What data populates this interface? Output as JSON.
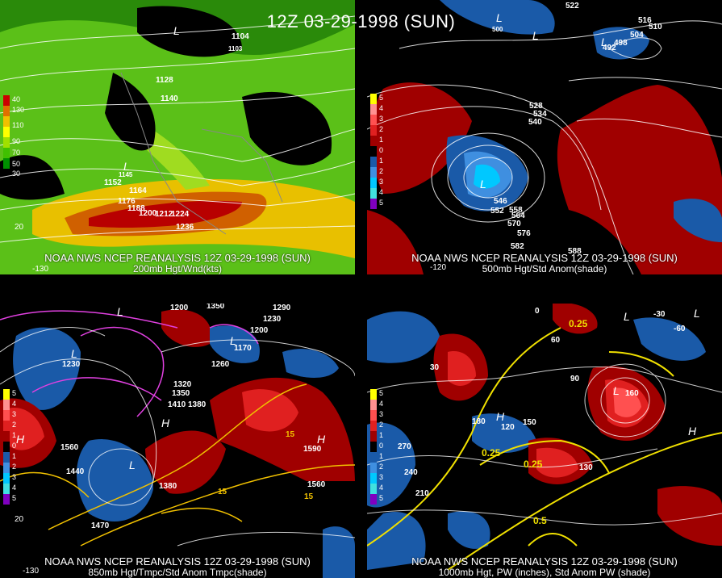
{
  "main_title": "12Z 03-29-1998 (SUN)",
  "panels": [
    {
      "id": "p200",
      "line1": "NOAA NWS NCEP REANALYSIS 12Z 03-29-1998 (SUN)",
      "line2": "200mb Hgt/Wnd(kts)",
      "scale": [
        "40",
        "130",
        "110",
        "90",
        "70",
        "50",
        "30"
      ],
      "scale_colors": [
        "#cc0000",
        "#e07000",
        "#f0c000",
        "#ffff00",
        "#a0e000",
        "#40c000",
        "#009000"
      ],
      "contour_labels": [
        "1104",
        "1103",
        "1128",
        "1140",
        "1152",
        "1164",
        "1176",
        "1188",
        "1200",
        "1212",
        "1224",
        "1236",
        "1145"
      ],
      "lows": [
        "L",
        "L"
      ],
      "edge_labels": [
        "20",
        "-130"
      ]
    },
    {
      "id": "p500",
      "line1": "NOAA NWS NCEP REANALYSIS 12Z 03-29-1998 (SUN)",
      "line2": "500mb Hgt/Std Anom(shade)",
      "scale": [
        "5",
        "4",
        "3",
        "2",
        "1",
        "0",
        "1",
        "2",
        "3",
        "4",
        "5"
      ],
      "scale_colors": [
        "#ffff00",
        "#ff9090",
        "#ff5050",
        "#e02020",
        "#a00000",
        "#000000",
        "#1a5aa8",
        "#3f8fe0",
        "#00c8ff",
        "#40e0e0",
        "#8000c0"
      ],
      "contour_labels": [
        "522",
        "516",
        "510",
        "504",
        "498",
        "492",
        "500",
        "528",
        "534",
        "540",
        "546",
        "552",
        "558",
        "564",
        "570",
        "576",
        "582",
        "588"
      ],
      "lows": [
        "L",
        "L",
        "L",
        "L"
      ],
      "edge_labels": [
        "-120"
      ]
    },
    {
      "id": "p850",
      "line1": "NOAA NWS NCEP REANALYSIS 12Z 03-29-1998 (SUN)",
      "line2": "850mb Hgt/Tmpc/Std Anom Tmpc(shade)",
      "scale": [
        "5",
        "4",
        "3",
        "2",
        "1",
        "0",
        "1",
        "2",
        "3",
        "4",
        "5"
      ],
      "scale_colors": [
        "#ffff00",
        "#ff9090",
        "#ff5050",
        "#e02020",
        "#a00000",
        "#000000",
        "#1a5aa8",
        "#3f8fe0",
        "#00c8ff",
        "#40e0e0",
        "#8000c0"
      ],
      "contour_labels": [
        "1200",
        "1350",
        "1290",
        "1230",
        "1200",
        "1170",
        "1260",
        "1320",
        "1350",
        "1410",
        "1380",
        "1440",
        "1470",
        "1380",
        "1560",
        "1590",
        "1560",
        "15",
        "15",
        "15",
        "1230"
      ],
      "lows": [
        "L",
        "L",
        "L",
        "L"
      ],
      "highs": [
        "H",
        "H",
        "H"
      ],
      "edge_labels": [
        "20",
        "-130"
      ]
    },
    {
      "id": "p1000",
      "line1": "NOAA NWS NCEP REANALYSIS 12Z 03-29-1998 (SUN)",
      "line2": "1000mb Hgt, PW (inches), Std Anom PW (shade)",
      "scale": [
        "5",
        "4",
        "3",
        "2",
        "1",
        "0",
        "1",
        "2",
        "3",
        "4",
        "5"
      ],
      "scale_colors": [
        "#ffff00",
        "#ff9090",
        "#ff5050",
        "#e02020",
        "#a00000",
        "#000000",
        "#1a5aa8",
        "#3f8fe0",
        "#00c8ff",
        "#40e0e0",
        "#8000c0"
      ],
      "contour_labels": [
        "0",
        "30",
        "60",
        "90",
        "120",
        "150",
        "180",
        "210",
        "240",
        "270",
        "-30",
        "-60",
        "0.25",
        "0.25",
        "0.25",
        "0.5",
        "160",
        "130"
      ],
      "lows": [
        "L",
        "L",
        "L"
      ],
      "highs": [
        "H",
        "H"
      ],
      "edge_labels": []
    }
  ]
}
